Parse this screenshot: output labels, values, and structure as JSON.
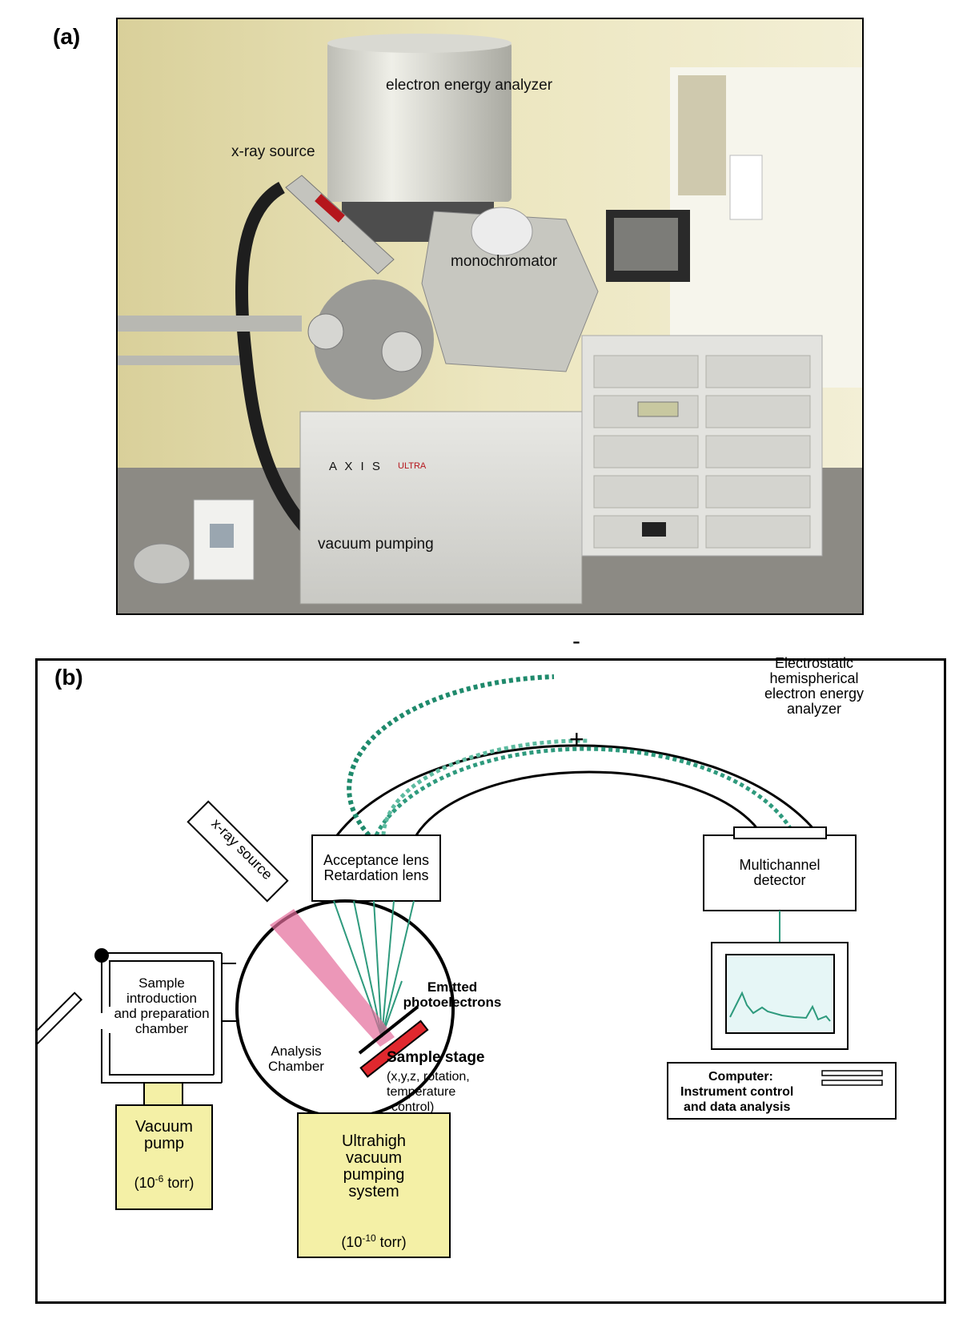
{
  "panels": {
    "a": {
      "label": "(a)"
    },
    "b": {
      "label": "(b)"
    }
  },
  "photo_labels": {
    "analyzer": "electron energy analyzer",
    "xray": "x-ray source",
    "monochromator": "monochromator",
    "vacuum": "vacuum pumping",
    "brand": "A X I S",
    "brand_suffix": "ULTRA"
  },
  "diagram": {
    "analyzer_label_lines": [
      "Electrostatic",
      "hemispherical",
      "electron energy",
      "analyzer"
    ],
    "minus_sign": "-",
    "plus_sign": "+",
    "lens_lines": [
      "Acceptance lens",
      "Retardation lens"
    ],
    "detector_lines": [
      "Multichannel",
      "detector"
    ],
    "xray_source": "x-ray source",
    "emitted_lines": [
      "Emitted",
      "photoelectrons"
    ],
    "sample_intro_lines": [
      "Sample",
      "introduction",
      "and preparation",
      "chamber"
    ],
    "analysis_chamber_lines": [
      "Analysis",
      "Chamber"
    ],
    "sample_stage_title": "Sample stage",
    "sample_stage_lines": [
      "(x,y,z, rotation,",
      "temperature",
      "control)"
    ],
    "vacuum_pump_lines": [
      "Vacuum",
      "pump"
    ],
    "vacuum_pump_pressure": {
      "base": "(10",
      "exp": "-6",
      "unit": " torr)"
    },
    "uhv_lines": [
      "Ultrahigh",
      "vacuum",
      "pumping",
      "system"
    ],
    "uhv_pressure": {
      "base": "(10",
      "exp": "-10",
      "unit": " torr)"
    },
    "computer_lines": [
      "Computer:",
      "Instrument control",
      "and data analysis"
    ]
  },
  "colors": {
    "yellow_box": "#f4f0a6",
    "sample_red": "#e0282e",
    "beam_pink": "#e46b9a",
    "electron_green": "#2e9a7d",
    "screen_fill": "#e6f6f6"
  }
}
